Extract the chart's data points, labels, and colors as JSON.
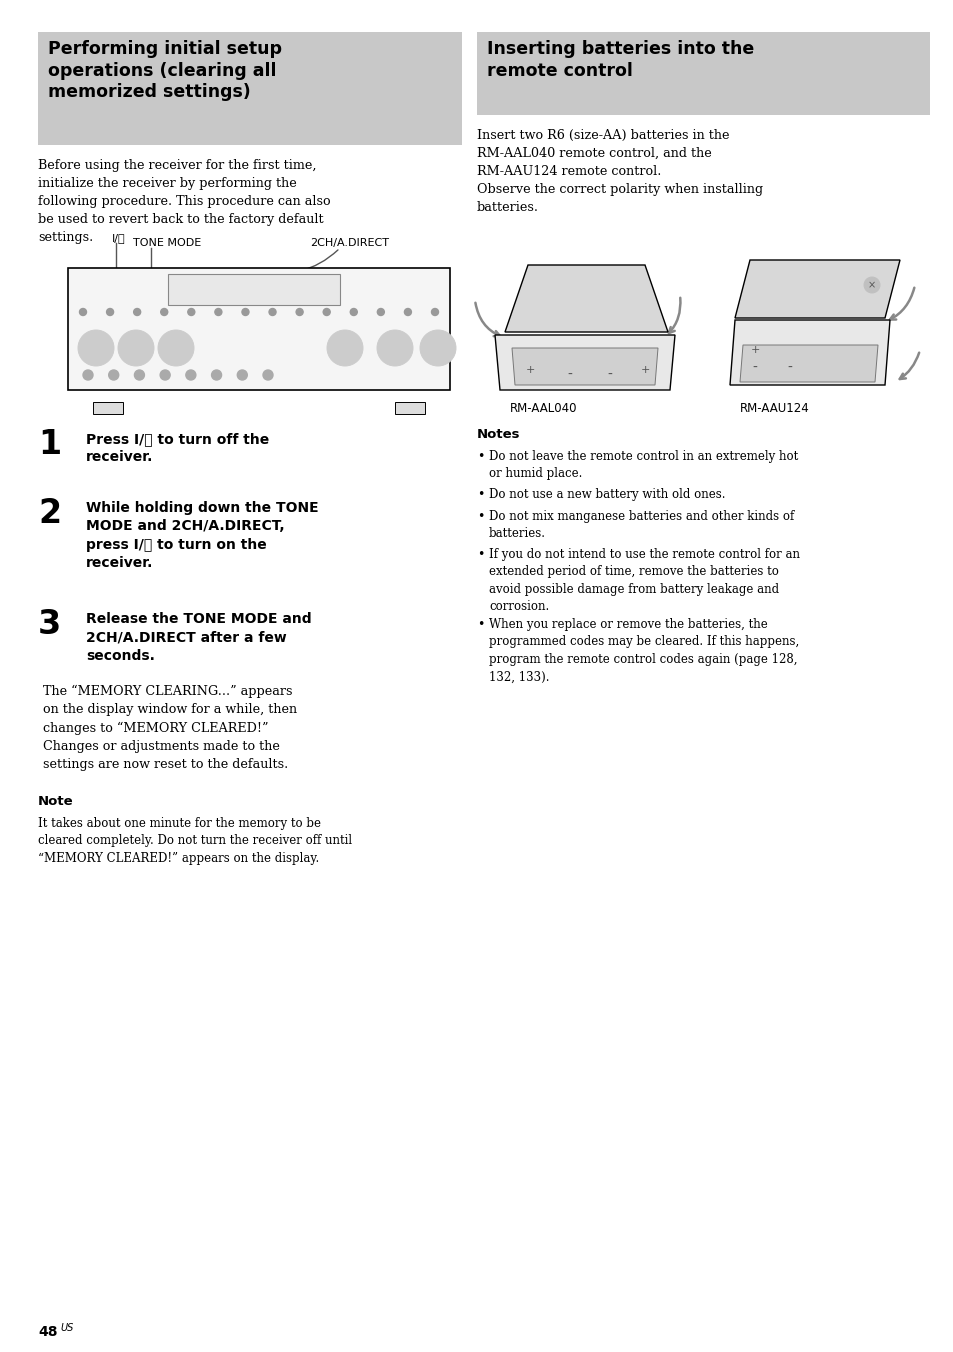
{
  "page_bg": "#ffffff",
  "header_bg": "#c8c8c8",
  "left_header": "Performing initial setup\noperations (clearing all\nmemorized settings)",
  "right_header": "Inserting batteries into the\nremote control",
  "left_body": "Before using the receiver for the first time,\ninitialize the receiver by performing the\nfollowing procedure. This procedure can also\nbe used to revert back to the factory default\nsettings.",
  "right_body": "Insert two R6 (size-AA) batteries in the\nRM-AAL040 remote control, and the\nRM-AAU124 remote control.\nObserve the correct polarity when installing\nbatteries.",
  "power_label": "I/⏻",
  "tone_label": "TONE MODE",
  "direct_label": "2CH/A.DIRECT",
  "step1_num": "1",
  "step1_bold": "Press I/⏻ to turn off the\nreceiver.",
  "step2_num": "2",
  "step2_bold": "While holding down the TONE\nMODE and 2CH/A.DIRECT,\npress I/⏻ to turn on the\nreceiver.",
  "step3_num": "3",
  "step3_bold": "Release the TONE MODE and\n2CH/A.DIRECT after a few\nseconds.",
  "step3_body": "The “MEMORY CLEARING...” appears\non the display window for a while, then\nchanges to “MEMORY CLEARED!”\nChanges or adjustments made to the\nsettings are now reset to the defaults.",
  "note_title": "Note",
  "note_body": "It takes about one minute for the memory to be\ncleared completely. Do not turn the receiver off until\n“MEMORY CLEARED!” appears on the display.",
  "notes_title": "Notes",
  "notes_items": [
    "Do not leave the remote control in an extremely hot\nor humid place.",
    "Do not use a new battery with old ones.",
    "Do not mix manganese batteries and other kinds of\nbatteries.",
    "If you do not intend to use the remote control for an\nextended period of time, remove the batteries to\navoid possible damage from battery leakage and\ncorrosion.",
    "When you replace or remove the batteries, the\nprogrammed codes may be cleared. If this happens,\nprogram the remote control codes again (page 128,\n132, 133)."
  ],
  "label_left": "RM-AAL040",
  "label_right": "RM-AAU124",
  "page_num": "48",
  "page_super": "US"
}
